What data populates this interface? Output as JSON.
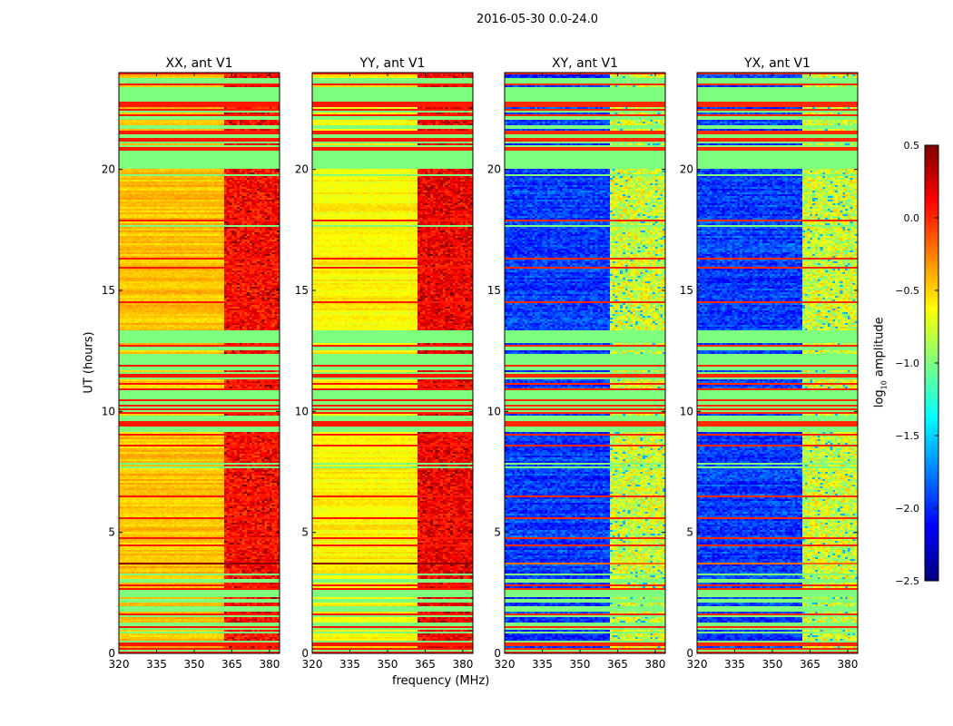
{
  "chart_data": {
    "type": "heatmap",
    "title": "2016-05-30 0.0-24.0",
    "xlabel": "frequency (MHz)",
    "ylabel": "UT (hours)",
    "xlim": [
      320,
      384
    ],
    "ylim": [
      0,
      24
    ],
    "xticks": [
      "320",
      "335",
      "350",
      "365",
      "380"
    ],
    "xtick_values": [
      320,
      335,
      350,
      365,
      380
    ],
    "yticks": [
      "0",
      "5",
      "10",
      "15",
      "20"
    ],
    "ytick_values": [
      0,
      5,
      10,
      15,
      20
    ],
    "colormap": "jet",
    "colorbar": {
      "label": "log10 amplitude",
      "label_main": "log",
      "label_sub": "10",
      "label_rest": " amplitude",
      "range": [
        -2.5,
        0.5
      ],
      "ticks": [
        "0.5",
        "0.0",
        "−0.5",
        "−1.0",
        "−1.5",
        "−2.0",
        "−2.5"
      ],
      "tick_values": [
        0.5,
        0.0,
        -0.5,
        -1.0,
        -1.5,
        -2.0,
        -2.5
      ]
    },
    "panels": [
      {
        "title": "XX, ant V1",
        "base_level": -0.45,
        "rfi_level": 0.1
      },
      {
        "title": "YY, ant V1",
        "base_level": -0.6,
        "rfi_level": 0.15
      },
      {
        "title": "XY, ant V1",
        "base_level": -1.95,
        "rfi_level": -0.75
      },
      {
        "title": "YX, ant V1",
        "base_level": -1.95,
        "rfi_level": -0.75
      }
    ],
    "rfi_start_mhz": 362,
    "flagged_level": -1.0,
    "flagged_intervals_hours": [
      [
        12.9,
        13.35
      ],
      [
        12.0,
        12.4
      ],
      [
        20.0,
        20.8
      ],
      [
        9.6,
        9.8
      ],
      [
        22.8,
        23.1
      ]
    ],
    "striped_intervals_hours": [
      [
        0,
        3.3
      ],
      [
        8.8,
        12.9
      ],
      [
        20.8,
        24
      ]
    ]
  }
}
